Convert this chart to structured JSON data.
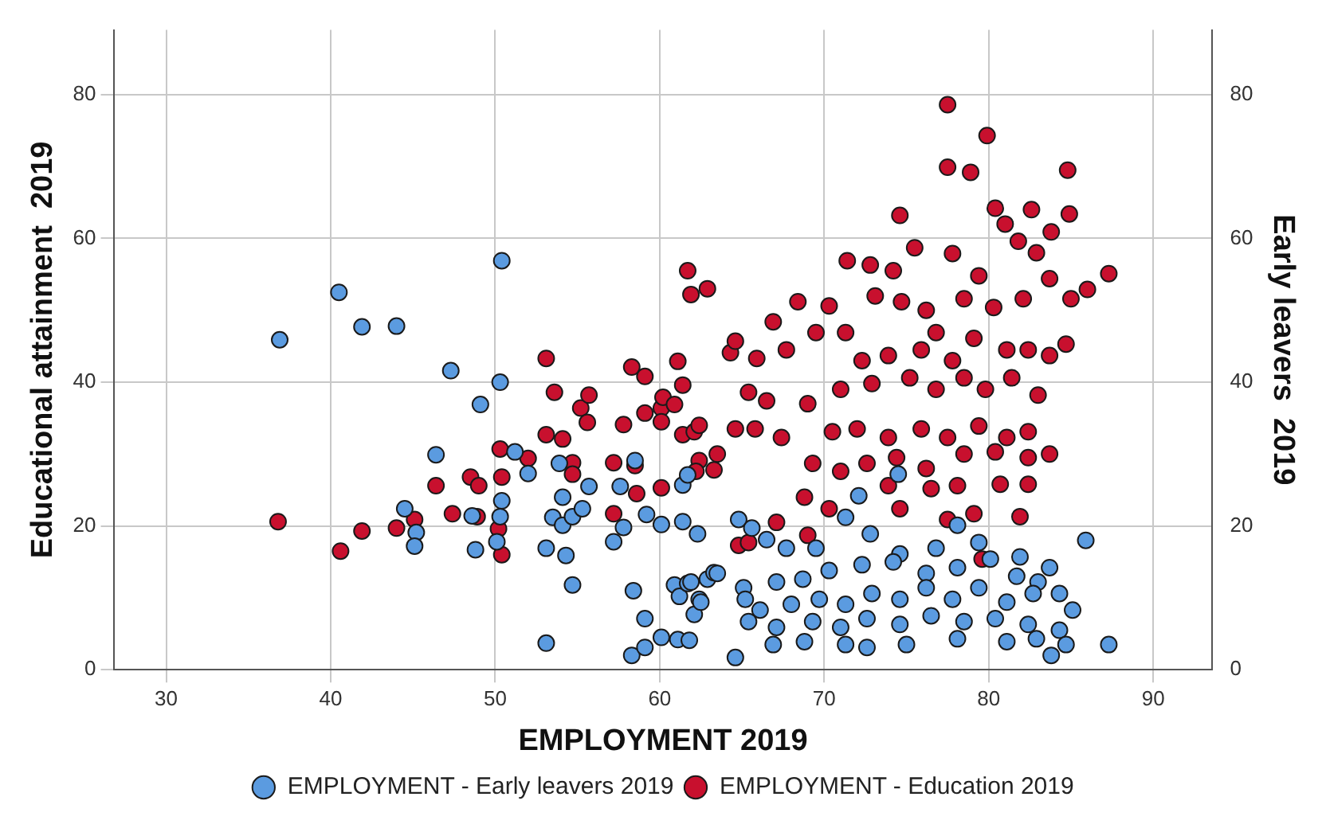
{
  "chart_data": {
    "type": "scatter",
    "xlabel": "EMPLOYMENT 2019",
    "ylabel": "Educational attainment  2019",
    "y2label": "Early leavers  2019",
    "xlim": [
      26.8,
      93.6
    ],
    "xticks": [
      30,
      40,
      50,
      60,
      70,
      80,
      90
    ],
    "ylim": [
      0,
      89
    ],
    "yticks": [
      0,
      20,
      40,
      60,
      80
    ],
    "y2lim": [
      0,
      89
    ],
    "y2ticks": [
      0,
      20,
      40,
      60,
      80
    ],
    "grid": true,
    "legend": "bottom",
    "marker": "circle",
    "series": [
      {
        "name": "EMPLOYMENT - Early leavers 2019",
        "color": "#5b9be0",
        "axis": "y2",
        "x": [
          36.9,
          40.5,
          41.9,
          44.0,
          50.4,
          47.3,
          50.3,
          49.1,
          46.4,
          44.5,
          45.2,
          45.1,
          48.6,
          48.8,
          50.4,
          50.3,
          50.1,
          51.2,
          52.0,
          53.1,
          53.1,
          53.5,
          53.9,
          54.1,
          54.1,
          54.3,
          54.7,
          54.7,
          55.3,
          55.7,
          57.2,
          57.8,
          57.6,
          58.5,
          58.4,
          58.3,
          59.1,
          59.1,
          59.2,
          60.1,
          60.1,
          61.1,
          61.8,
          60.9,
          61.2,
          61.7,
          62.1,
          62.4,
          61.4,
          62.3,
          61.4,
          61.7,
          62.9,
          63.3,
          74.5,
          72.1,
          78.1,
          79.4,
          85.9,
          87.3,
          83.8,
          64.6,
          64.8,
          65.6,
          66.5,
          67.7,
          69.5,
          71.3,
          72.8,
          74.6,
          76.8,
          81.9,
          83.7,
          61.9,
          63.5,
          65.1,
          67.1,
          68.7,
          70.3,
          72.3,
          74.2,
          76.2,
          78.1,
          80.1,
          81.7,
          83.0,
          84.3,
          85.1,
          62.5,
          65.2,
          66.1,
          68.0,
          69.7,
          71.3,
          72.9,
          74.6,
          76.2,
          77.8,
          79.4,
          81.1,
          82.7,
          65.4,
          67.1,
          69.3,
          71.0,
          72.6,
          74.6,
          76.5,
          78.5,
          80.4,
          82.4,
          84.3,
          66.9,
          68.8,
          71.3,
          72.6,
          75.0,
          78.1,
          81.1,
          82.9,
          84.7
        ],
        "values": [
          45.9,
          52.5,
          47.7,
          47.8,
          56.9,
          41.6,
          40.0,
          36.9,
          29.9,
          22.4,
          19.1,
          17.2,
          21.4,
          16.7,
          23.5,
          21.3,
          17.8,
          30.3,
          27.3,
          16.9,
          3.7,
          21.2,
          28.7,
          24.0,
          20.1,
          15.9,
          11.8,
          21.3,
          22.4,
          25.5,
          17.8,
          19.8,
          25.5,
          29.1,
          11.0,
          2.0,
          7.1,
          3.1,
          21.6,
          4.5,
          20.2,
          4.2,
          4.1,
          11.8,
          10.2,
          12.0,
          7.7,
          9.8,
          20.6,
          18.9,
          25.7,
          27.1,
          12.6,
          13.5,
          27.2,
          24.2,
          20.1,
          17.7,
          18.0,
          3.5,
          2.0,
          1.7,
          20.9,
          19.7,
          18.1,
          16.9,
          16.9,
          21.2,
          18.9,
          16.1,
          16.9,
          15.7,
          14.2,
          12.2,
          13.4,
          11.4,
          12.2,
          12.6,
          13.8,
          14.6,
          15.0,
          13.4,
          14.2,
          15.4,
          13.0,
          12.2,
          10.6,
          8.3,
          9.4,
          9.8,
          8.3,
          9.1,
          9.8,
          9.1,
          10.6,
          9.8,
          11.4,
          9.8,
          11.4,
          9.4,
          10.6,
          6.7,
          5.9,
          6.7,
          5.9,
          7.1,
          6.3,
          7.5,
          6.7,
          7.1,
          6.3,
          5.5,
          3.5,
          3.9,
          3.5,
          3.1,
          3.5,
          4.3,
          3.9,
          4.3,
          3.5
        ]
      },
      {
        "name": "EMPLOYMENT - Education 2019",
        "color": "#c8102e",
        "x": [
          36.8,
          40.6,
          41.9,
          44.0,
          45.1,
          46.4,
          47.4,
          48.5,
          49.0,
          48.9,
          50.2,
          50.4,
          50.4,
          50.3,
          52.0,
          53.1,
          53.6,
          53.1,
          54.1,
          54.7,
          54.7,
          55.2,
          55.7,
          55.6,
          57.2,
          57.2,
          57.8,
          58.3,
          59.1,
          58.5,
          58.6,
          59.1,
          60.1,
          60.2,
          60.1,
          60.1,
          60.9,
          61.1,
          61.4,
          61.4,
          62.1,
          61.7,
          61.9,
          62.9,
          62.4,
          63.3,
          77.5,
          79.9,
          77.5,
          78.9,
          84.8,
          84.9,
          74.6,
          80.4,
          82.6,
          81.0,
          83.8,
          81.8,
          87.3,
          86.0,
          71.4,
          72.8,
          74.2,
          75.5,
          77.8,
          79.4,
          82.9,
          83.7,
          85.0,
          66.9,
          68.4,
          70.3,
          73.1,
          74.7,
          76.2,
          78.5,
          80.3,
          82.1,
          64.3,
          64.6,
          65.9,
          67.7,
          69.5,
          71.3,
          72.3,
          73.9,
          75.9,
          76.8,
          77.8,
          79.1,
          81.1,
          82.4,
          83.7,
          84.7,
          65.4,
          66.5,
          69.0,
          71.0,
          72.9,
          75.2,
          76.8,
          78.5,
          79.8,
          81.4,
          83.0,
          64.6,
          65.8,
          67.4,
          70.5,
          72.0,
          73.9,
          75.9,
          77.5,
          79.4,
          81.1,
          82.4,
          69.3,
          71.0,
          72.6,
          74.4,
          76.2,
          78.5,
          80.4,
          82.4,
          83.7,
          68.8,
          73.9,
          76.5,
          78.1,
          80.7,
          82.4,
          62.2,
          63.5,
          62.4,
          67.1,
          70.3,
          74.6,
          77.5,
          79.1,
          81.9,
          64.8,
          65.4,
          69.0,
          79.6
        ],
        "values": [
          20.6,
          16.5,
          19.3,
          19.7,
          20.9,
          25.6,
          21.7,
          26.8,
          25.6,
          21.3,
          19.6,
          16.0,
          26.8,
          30.7,
          29.4,
          43.3,
          38.6,
          32.7,
          32.1,
          28.8,
          27.2,
          36.4,
          38.2,
          34.4,
          28.8,
          21.7,
          34.1,
          42.1,
          40.8,
          28.4,
          24.5,
          35.7,
          36.4,
          37.9,
          34.5,
          25.3,
          36.9,
          42.9,
          39.6,
          32.7,
          33.1,
          55.5,
          52.2,
          53.0,
          29.1,
          27.8,
          78.6,
          74.3,
          69.9,
          69.2,
          69.5,
          63.4,
          63.2,
          64.2,
          64.0,
          62.0,
          60.9,
          59.6,
          55.1,
          52.9,
          56.9,
          56.3,
          55.5,
          58.7,
          57.9,
          54.8,
          58.0,
          54.4,
          51.6,
          48.4,
          51.2,
          50.6,
          52.0,
          51.2,
          50.0,
          51.6,
          50.4,
          51.6,
          44.1,
          45.7,
          43.3,
          44.5,
          46.9,
          46.9,
          43.0,
          43.7,
          44.5,
          46.9,
          43.0,
          46.1,
          44.5,
          44.5,
          43.7,
          45.3,
          38.6,
          37.4,
          37.0,
          39.0,
          39.8,
          40.6,
          39.0,
          40.6,
          39.0,
          40.6,
          38.2,
          33.5,
          33.5,
          32.3,
          33.1,
          33.5,
          32.3,
          33.5,
          32.3,
          33.9,
          32.3,
          33.1,
          28.7,
          27.6,
          28.7,
          29.5,
          28.0,
          30.0,
          30.3,
          29.5,
          30.0,
          24.0,
          25.6,
          25.2,
          25.6,
          25.8,
          25.8,
          27.6,
          30.0,
          34.0,
          20.5,
          22.4,
          22.4,
          20.9,
          21.7,
          21.3,
          17.3,
          17.7,
          18.7,
          15.4
        ]
      }
    ]
  }
}
